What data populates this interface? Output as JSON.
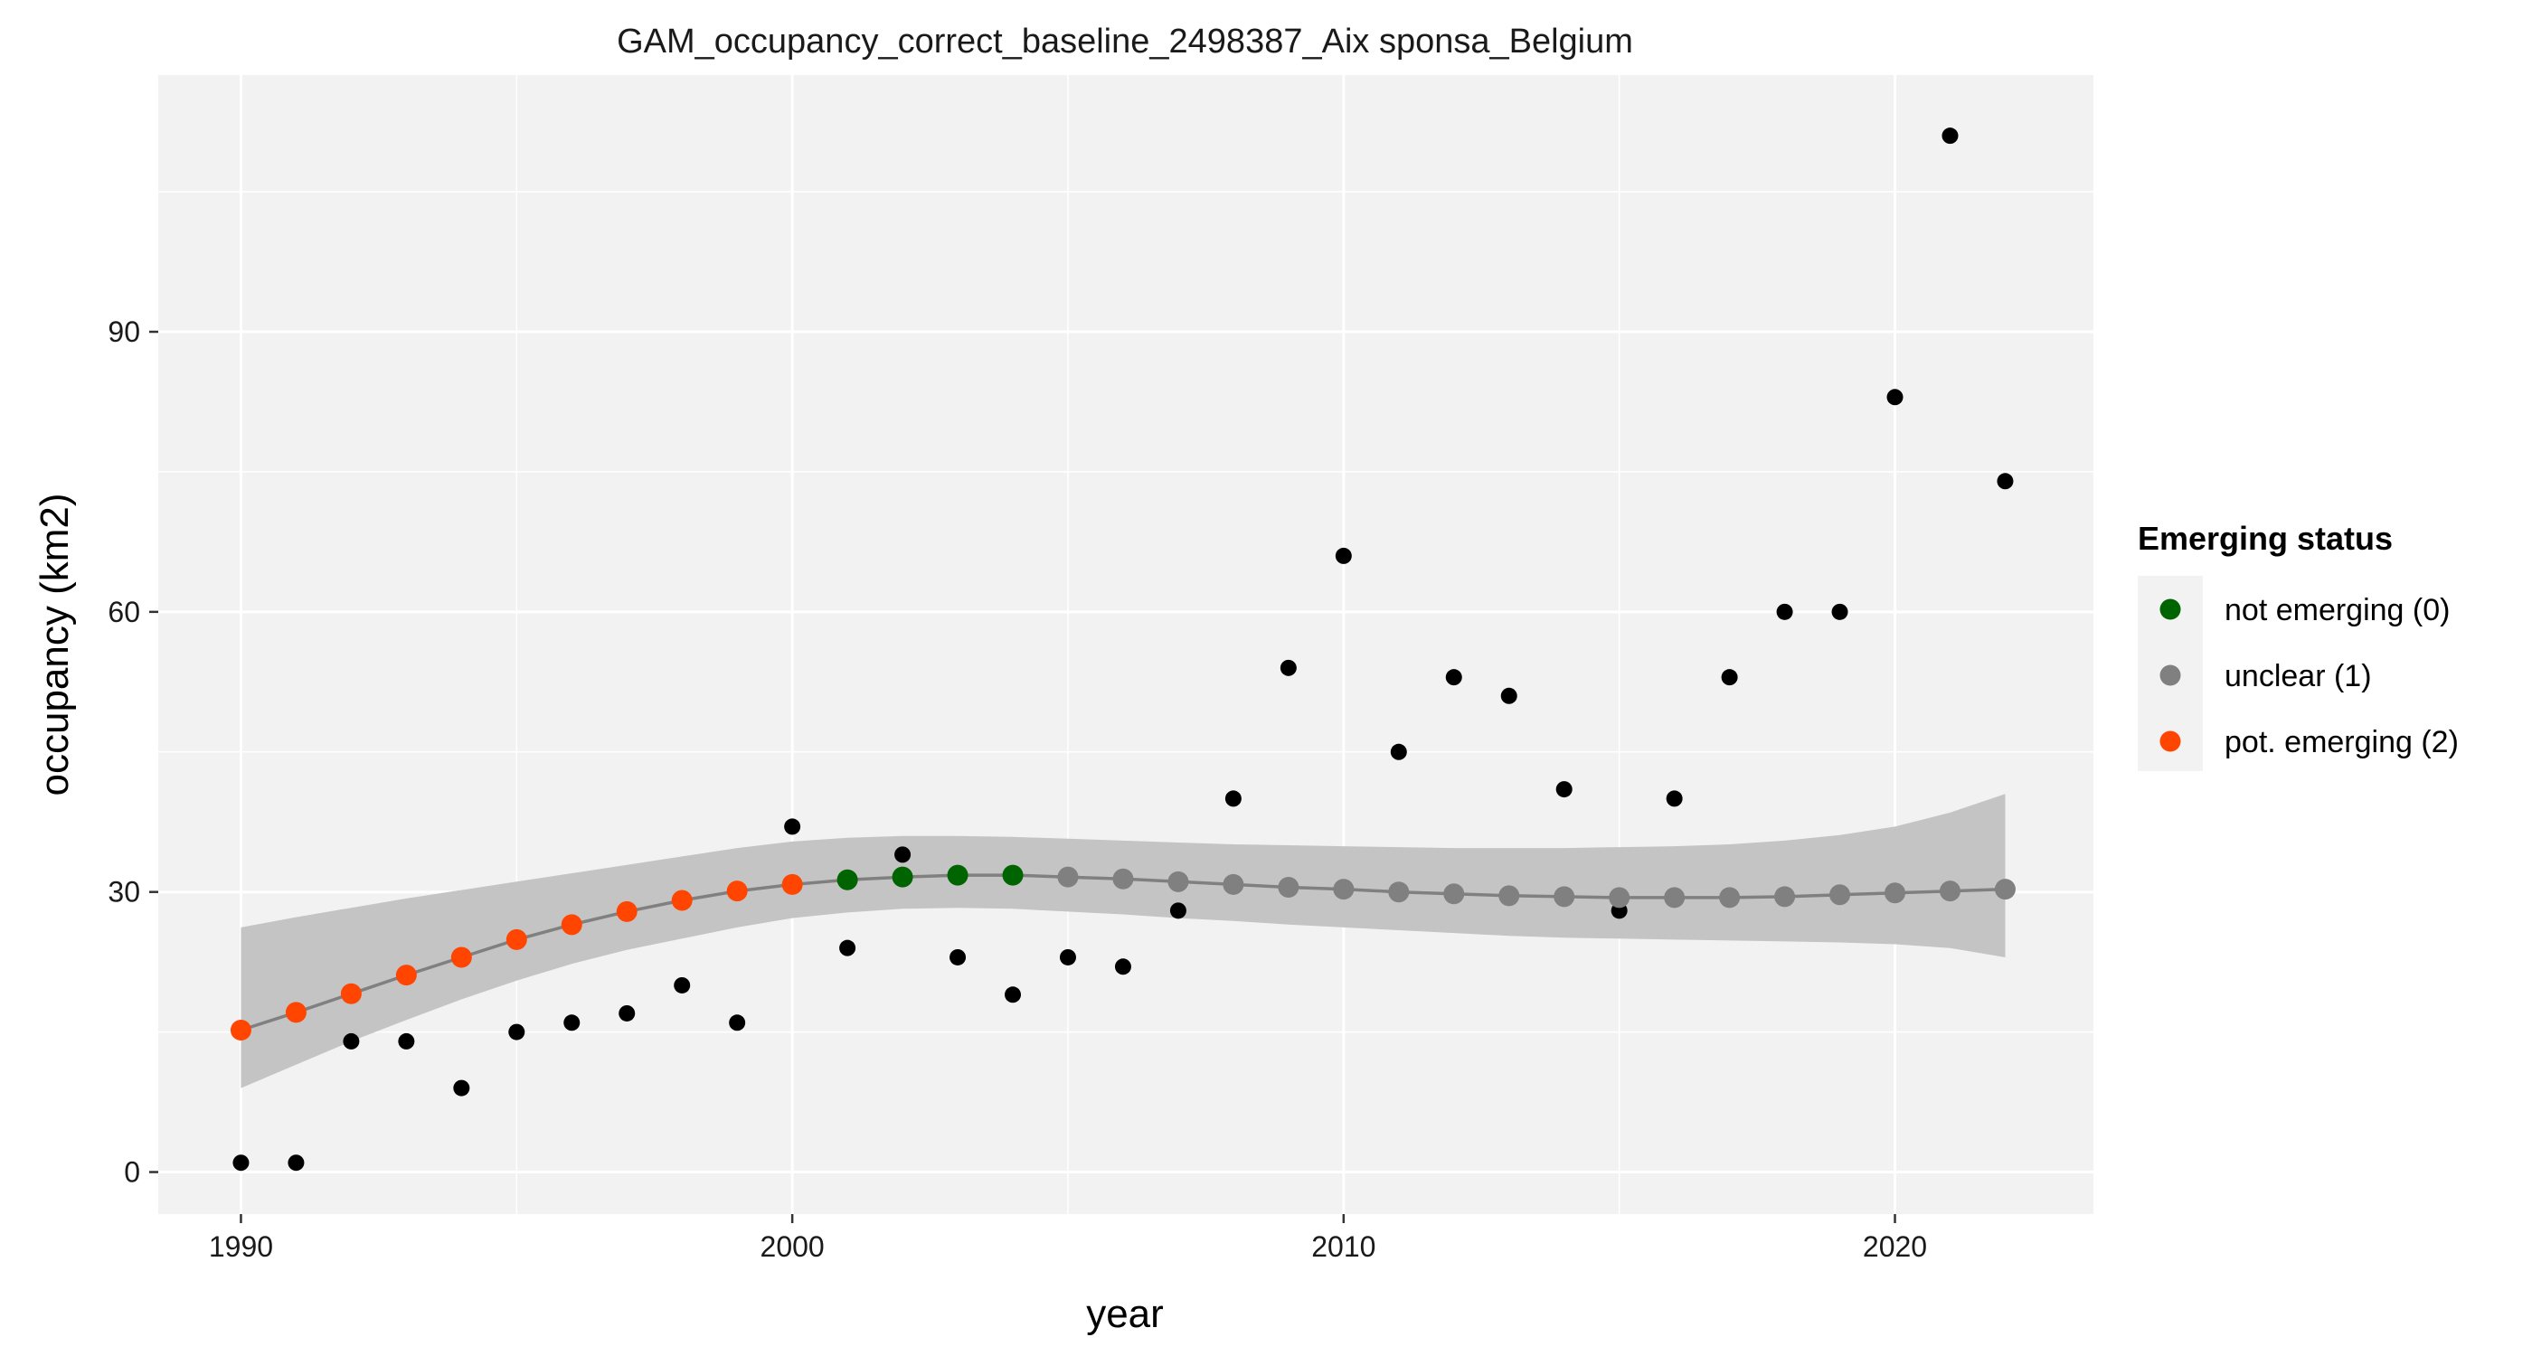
{
  "chart_data": {
    "type": "scatter",
    "title": "GAM_occupancy_correct_baseline_2498387_Aix sponsa_Belgium",
    "xlabel": "year",
    "ylabel": "occupancy (km2)",
    "xlim": [
      1988.5,
      2023.6
    ],
    "ylim": [
      -4.5,
      117.5
    ],
    "x_ticks": [
      1990,
      2000,
      2010,
      2020
    ],
    "x_tick_labels": [
      "1990",
      "2000",
      "2010",
      "2020"
    ],
    "y_ticks": [
      0,
      30,
      60,
      90
    ],
    "y_tick_labels": [
      "0",
      "30",
      "60",
      "90"
    ],
    "grid": true,
    "legend": {
      "title": "Emerging status",
      "position": "right",
      "entries": [
        {
          "label": "not emerging (0)",
          "color": "#006400"
        },
        {
          "label": "unclear (1)",
          "color": "#808080"
        },
        {
          "label": "pot. emerging (2)",
          "color": "#ff4500"
        }
      ]
    },
    "observed": {
      "color": "#000000",
      "x": [
        1990,
        1991,
        1992,
        1993,
        1994,
        1995,
        1996,
        1997,
        1998,
        1999,
        2000,
        2001,
        2002,
        2003,
        2004,
        2005,
        2006,
        2007,
        2008,
        2009,
        2010,
        2011,
        2012,
        2013,
        2014,
        2015,
        2016,
        2017,
        2018,
        2019,
        2020,
        2021,
        2022
      ],
      "y": [
        1,
        1,
        14,
        14,
        9,
        15,
        16,
        17,
        20,
        16,
        37,
        24,
        34,
        23,
        19,
        23,
        22,
        28,
        40,
        54,
        66,
        45,
        53,
        51,
        41,
        28,
        40,
        53,
        60,
        60,
        83,
        111,
        74
      ]
    },
    "fit": {
      "line_color": "#808080",
      "band_color": "#c4c4c4",
      "x": [
        1990,
        1991,
        1992,
        1993,
        1994,
        1995,
        1996,
        1997,
        1998,
        1999,
        2000,
        2001,
        2002,
        2003,
        2004,
        2005,
        2006,
        2007,
        2008,
        2009,
        2010,
        2011,
        2012,
        2013,
        2014,
        2015,
        2016,
        2017,
        2018,
        2019,
        2020,
        2021,
        2022
      ],
      "y": [
        15.2,
        17.1,
        19.1,
        21.1,
        23.0,
        24.9,
        26.5,
        27.9,
        29.1,
        30.1,
        30.8,
        31.3,
        31.6,
        31.8,
        31.8,
        31.6,
        31.4,
        31.1,
        30.8,
        30.5,
        30.3,
        30.0,
        29.8,
        29.6,
        29.5,
        29.4,
        29.4,
        29.4,
        29.5,
        29.7,
        29.9,
        30.1,
        30.3
      ],
      "lower": [
        9,
        11.5,
        14,
        16.3,
        18.5,
        20.5,
        22.3,
        23.8,
        25.0,
        26.2,
        27.2,
        27.8,
        28.2,
        28.3,
        28.2,
        27.9,
        27.6,
        27.2,
        26.9,
        26.5,
        26.2,
        25.9,
        25.6,
        25.3,
        25.1,
        25.0,
        24.9,
        24.8,
        24.7,
        24.6,
        24.4,
        24.0,
        23.0
      ],
      "upper": [
        26.2,
        27.3,
        28.3,
        29.3,
        30.2,
        31.1,
        32.0,
        32.9,
        33.8,
        34.7,
        35.4,
        35.8,
        36.0,
        36.0,
        35.9,
        35.7,
        35.5,
        35.3,
        35.1,
        35.0,
        34.9,
        34.8,
        34.7,
        34.7,
        34.7,
        34.8,
        34.9,
        35.1,
        35.5,
        36.1,
        37.0,
        38.5,
        40.5
      ],
      "status": [
        2,
        2,
        2,
        2,
        2,
        2,
        2,
        2,
        2,
        2,
        2,
        0,
        0,
        0,
        0,
        1,
        1,
        1,
        1,
        1,
        1,
        1,
        1,
        1,
        1,
        1,
        1,
        1,
        1,
        1,
        1,
        1,
        1
      ]
    }
  }
}
